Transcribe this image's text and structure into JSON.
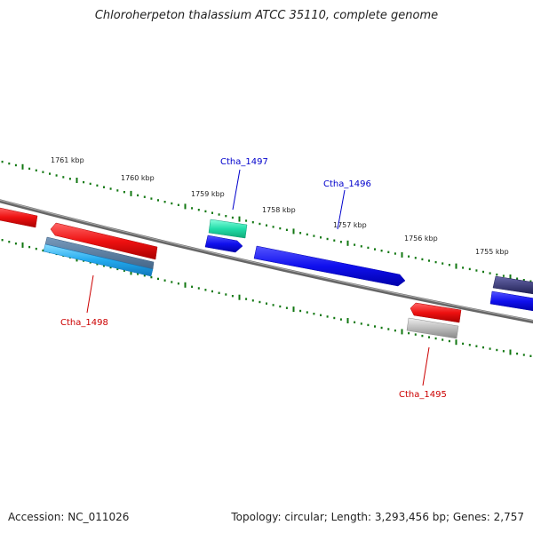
{
  "title": "Chloroherpeton thalassium ATCC 35110, complete genome",
  "footer": {
    "accession": "Accession: NC_011026",
    "topology": "Topology: circular; Length: 3,293,456 bp; Genes: 2,757"
  },
  "kbp_labels": [
    "1761 kbp",
    "1760 kbp",
    "1759 kbp",
    "1758 kbp",
    "1757 kbp",
    "1756 kbp",
    "1755 kbp"
  ],
  "gene_labels": [
    {
      "name": "Ctha_1497",
      "color": "#0000cc"
    },
    {
      "name": "Ctha_1496",
      "color": "#0000cc"
    },
    {
      "name": "Ctha_1498",
      "color": "#cc0000"
    },
    {
      "name": "Ctha_1495",
      "color": "#cc0000"
    }
  ],
  "colors": {
    "backbone": "#777777",
    "tick": "#117711",
    "forward_gene": "#1010ee",
    "reverse_gene": "#ee1111",
    "rna": "#22ddaa",
    "pseudo": "#b8b8b8",
    "other": "#333377",
    "cyan": "#22aaee"
  }
}
